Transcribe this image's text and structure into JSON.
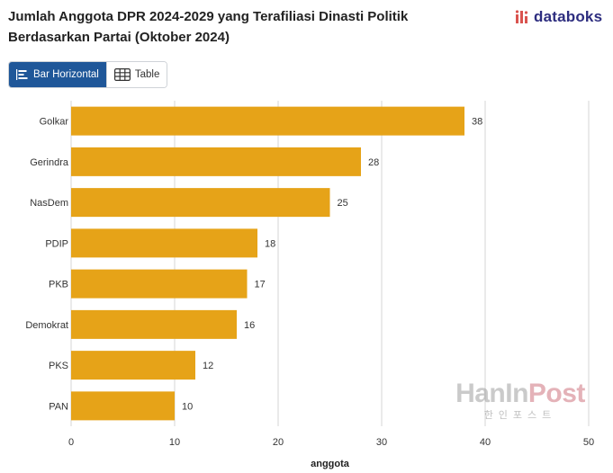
{
  "header": {
    "title_line1": "Jumlah Anggota DPR 2024-2029 yang Terafiliasi Dinasti Politik",
    "title_line2": "Berdasarkan Partai (Oktober 2024)",
    "brand": "databoks"
  },
  "view_toggle": {
    "bar_label": "Bar Horizontal",
    "table_label": "Table"
  },
  "colors": {
    "bar": "#E6A318",
    "active": "#1F5799",
    "grid": "#d6d6d6"
  },
  "watermark": {
    "main_prefix": "HanIn",
    "main_suffix": "Post",
    "sub": "한인포스트"
  },
  "chart_data": {
    "type": "bar",
    "orientation": "horizontal",
    "title": "Jumlah Anggota DPR 2024-2029 yang Terafiliasi Dinasti Politik Berdasarkan Partai (Oktober 2024)",
    "categories": [
      "Golkar",
      "Gerindra",
      "NasDem",
      "PDIP",
      "PKB",
      "Demokrat",
      "PKS",
      "PAN"
    ],
    "values": [
      38,
      28,
      25,
      18,
      17,
      16,
      12,
      10
    ],
    "xlabel": "anggota",
    "ylabel": "",
    "xlim": [
      0,
      50
    ],
    "xticks": [
      0,
      10,
      20,
      30,
      40,
      50
    ],
    "grid": true,
    "data_labels": true
  }
}
